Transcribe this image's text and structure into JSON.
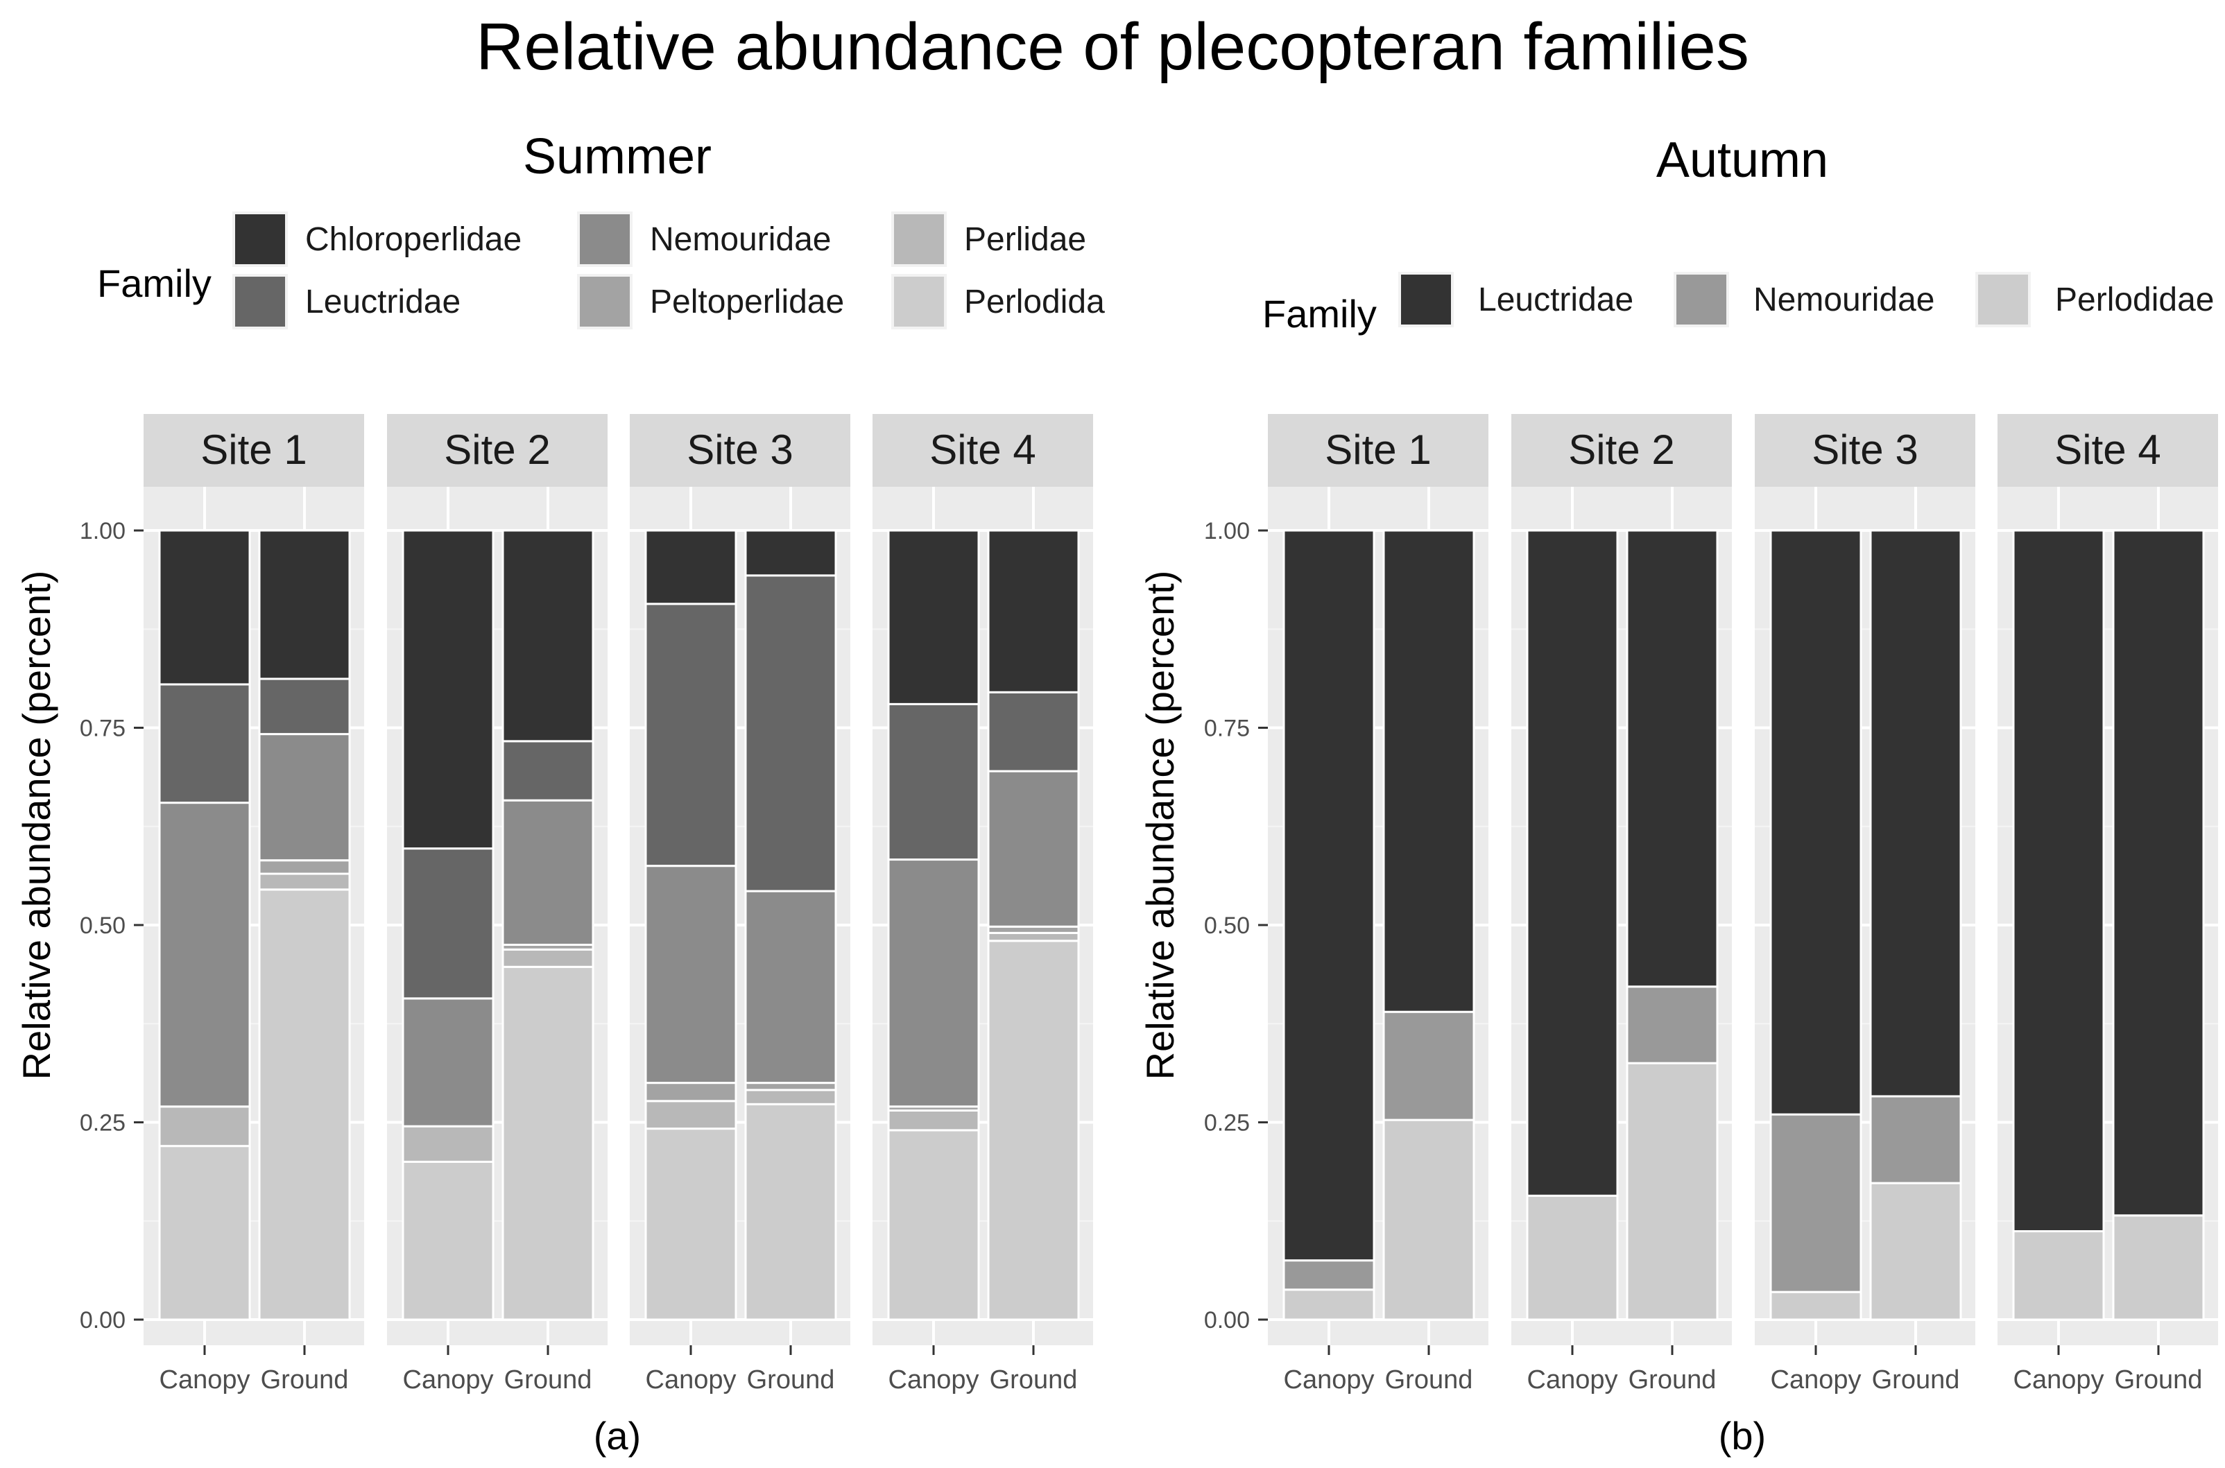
{
  "title": "Relative abundance of plecopteran families",
  "chart_data": [
    {
      "type": "bar",
      "stacked": true,
      "panel_label": "(a)",
      "title": "Summer",
      "ylabel": "Relative abundance (percent)",
      "xlabel": "",
      "ylim": [
        0,
        1
      ],
      "yticks": [
        "0.00",
        "0.25",
        "0.50",
        "0.75",
        "1.00"
      ],
      "categories": [
        "Canopy",
        "Ground"
      ],
      "facets": [
        "Site 1",
        "Site 2",
        "Site 3",
        "Site 4"
      ],
      "legend": {
        "title": "Family",
        "items": [
          {
            "name": "Chloroperlidae",
            "color": "#333333"
          },
          {
            "name": "Leuctridae",
            "color": "#666666"
          },
          {
            "name": "Nemouridae",
            "color": "#8b8b8b"
          },
          {
            "name": "Peltoperlidae",
            "color": "#a3a3a3"
          },
          {
            "name": "Perlidae",
            "color": "#b8b8b8"
          },
          {
            "name": "Perlodida",
            "color": "#cccccc"
          }
        ]
      },
      "stack_order": [
        "Perlodida",
        "Perlidae",
        "Peltoperlidae",
        "Nemouridae",
        "Leuctridae",
        "Chloroperlidae"
      ],
      "values": {
        "Site 1": {
          "Canopy": {
            "Perlodida": 0.22,
            "Perlidae": 0.05,
            "Peltoperlidae": 0.0,
            "Nemouridae": 0.385,
            "Leuctridae": 0.15,
            "Chloroperlidae": 0.195
          },
          "Ground": {
            "Perlodida": 0.545,
            "Perlidae": 0.02,
            "Peltoperlidae": 0.017,
            "Nemouridae": 0.16,
            "Leuctridae": 0.07,
            "Chloroperlidae": 0.188
          }
        },
        "Site 2": {
          "Canopy": {
            "Perlodida": 0.2,
            "Perlidae": 0.045,
            "Peltoperlidae": 0.0,
            "Nemouridae": 0.162,
            "Leuctridae": 0.19,
            "Chloroperlidae": 0.403
          },
          "Ground": {
            "Perlodida": 0.447,
            "Perlidae": 0.022,
            "Peltoperlidae": 0.006,
            "Nemouridae": 0.183,
            "Leuctridae": 0.075,
            "Chloroperlidae": 0.267
          }
        },
        "Site 3": {
          "Canopy": {
            "Perlodida": 0.242,
            "Perlidae": 0.035,
            "Peltoperlidae": 0.023,
            "Nemouridae": 0.275,
            "Leuctridae": 0.332,
            "Chloroperlidae": 0.093
          },
          "Ground": {
            "Perlodida": 0.273,
            "Perlidae": 0.018,
            "Peltoperlidae": 0.009,
            "Nemouridae": 0.243,
            "Leuctridae": 0.4,
            "Chloroperlidae": 0.057
          }
        },
        "Site 4": {
          "Canopy": {
            "Perlodida": 0.24,
            "Perlidae": 0.025,
            "Peltoperlidae": 0.005,
            "Nemouridae": 0.313,
            "Leuctridae": 0.197,
            "Chloroperlidae": 0.22
          },
          "Ground": {
            "Perlodida": 0.48,
            "Perlidae": 0.01,
            "Peltoperlidae": 0.008,
            "Nemouridae": 0.197,
            "Leuctridae": 0.1,
            "Chloroperlidae": 0.205
          }
        }
      }
    },
    {
      "type": "bar",
      "stacked": true,
      "panel_label": "(b)",
      "title": "Autumn",
      "ylabel": "Relative abundance (percent)",
      "xlabel": "",
      "ylim": [
        0,
        1
      ],
      "yticks": [
        "0.00",
        "0.25",
        "0.50",
        "0.75",
        "1.00"
      ],
      "categories": [
        "Canopy",
        "Ground"
      ],
      "facets": [
        "Site 1",
        "Site 2",
        "Site 3",
        "Site 4"
      ],
      "legend": {
        "title": "Family",
        "items": [
          {
            "name": "Leuctridae",
            "color": "#333333"
          },
          {
            "name": "Nemouridae",
            "color": "#999999"
          },
          {
            "name": "Perlodidae",
            "color": "#cccccc"
          }
        ]
      },
      "stack_order": [
        "Perlodidae",
        "Nemouridae",
        "Leuctridae"
      ],
      "values": {
        "Site 1": {
          "Canopy": {
            "Perlodidae": 0.038,
            "Nemouridae": 0.037,
            "Leuctridae": 0.925
          },
          "Ground": {
            "Perlodidae": 0.253,
            "Nemouridae": 0.137,
            "Leuctridae": 0.61
          }
        },
        "Site 2": {
          "Canopy": {
            "Perlodidae": 0.157,
            "Nemouridae": 0.0,
            "Leuctridae": 0.843
          },
          "Ground": {
            "Perlodidae": 0.325,
            "Nemouridae": 0.097,
            "Leuctridae": 0.578
          }
        },
        "Site 3": {
          "Canopy": {
            "Perlodidae": 0.035,
            "Nemouridae": 0.225,
            "Leuctridae": 0.74
          },
          "Ground": {
            "Perlodidae": 0.173,
            "Nemouridae": 0.11,
            "Leuctridae": 0.717
          }
        },
        "Site 4": {
          "Canopy": {
            "Perlodidae": 0.112,
            "Nemouridae": 0.0,
            "Leuctridae": 0.888
          },
          "Ground": {
            "Perlodidae": 0.132,
            "Nemouridae": 0.0,
            "Leuctridae": 0.868
          }
        }
      }
    }
  ]
}
